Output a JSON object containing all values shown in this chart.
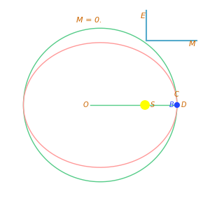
{
  "title": "M = 0.",
  "title_color": "#cc6600",
  "title_fontsize": 8,
  "title_italic": true,
  "ellipse_a": 0.8,
  "ellipse_b": 0.65,
  "ellipse_eccentricity": 0.6,
  "ellipse_color": "#ff9999",
  "circle_r": 0.8,
  "circle_color": "#55cc88",
  "sun_r": 0.045,
  "sun_color": "#ffff00",
  "sun_label": "S",
  "sun_label_color": "#cc6600",
  "planet_r": 0.025,
  "planet_color": "#2244ff",
  "planet_label": "B",
  "planet_label_color": "#2244ff",
  "O_label": "O",
  "O_label_color": "#cc6600",
  "C_label": "C",
  "C_label_color": "#cc6600",
  "D_label": "D",
  "D_label_color": "#cc6600",
  "line_color": "#55cc88",
  "inset_color": "#55aacc",
  "inset_E_label": "E",
  "inset_M_label": "M",
  "inset_label_color": "#cc6600",
  "bg_color": "#ffffff"
}
